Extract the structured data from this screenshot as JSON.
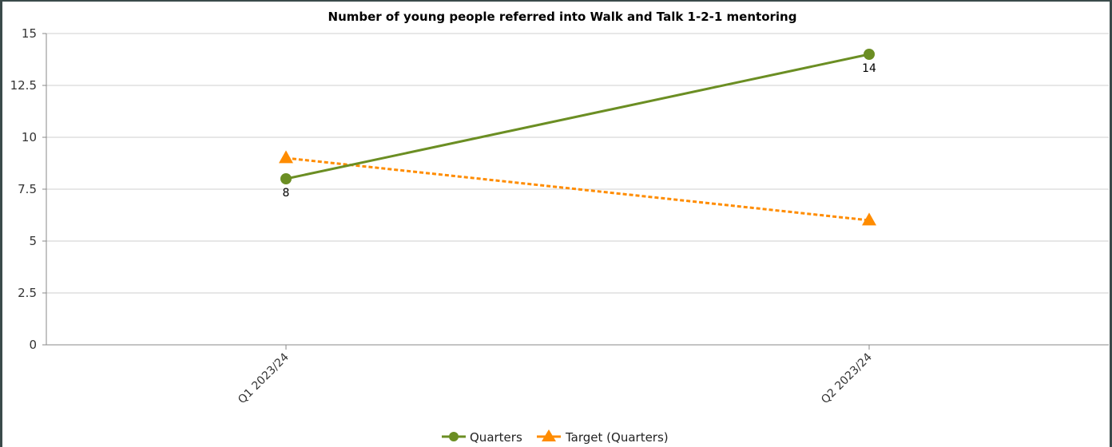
{
  "chart_data": {
    "type": "line",
    "title": "Number of young people referred into Walk and Talk 1-2-1 mentoring",
    "categories": [
      "Q1 2023/24",
      "Q2 2023/24"
    ],
    "ylim": [
      0,
      15
    ],
    "yticks": [
      "0",
      "2.5",
      "5",
      "7.5",
      "10",
      "12.5",
      "15"
    ],
    "grid": true,
    "legend_position": "bottom-center",
    "series": [
      {
        "name": "Quarters",
        "values": [
          8,
          14
        ],
        "data_labels": [
          "8",
          "14"
        ],
        "color": "#6b8e23",
        "marker": "circle",
        "line_style": "solid"
      },
      {
        "name": "Target (Quarters)",
        "values": [
          9,
          6
        ],
        "color": "#ff8c00",
        "marker": "triangle",
        "line_style": "dashed"
      }
    ]
  }
}
